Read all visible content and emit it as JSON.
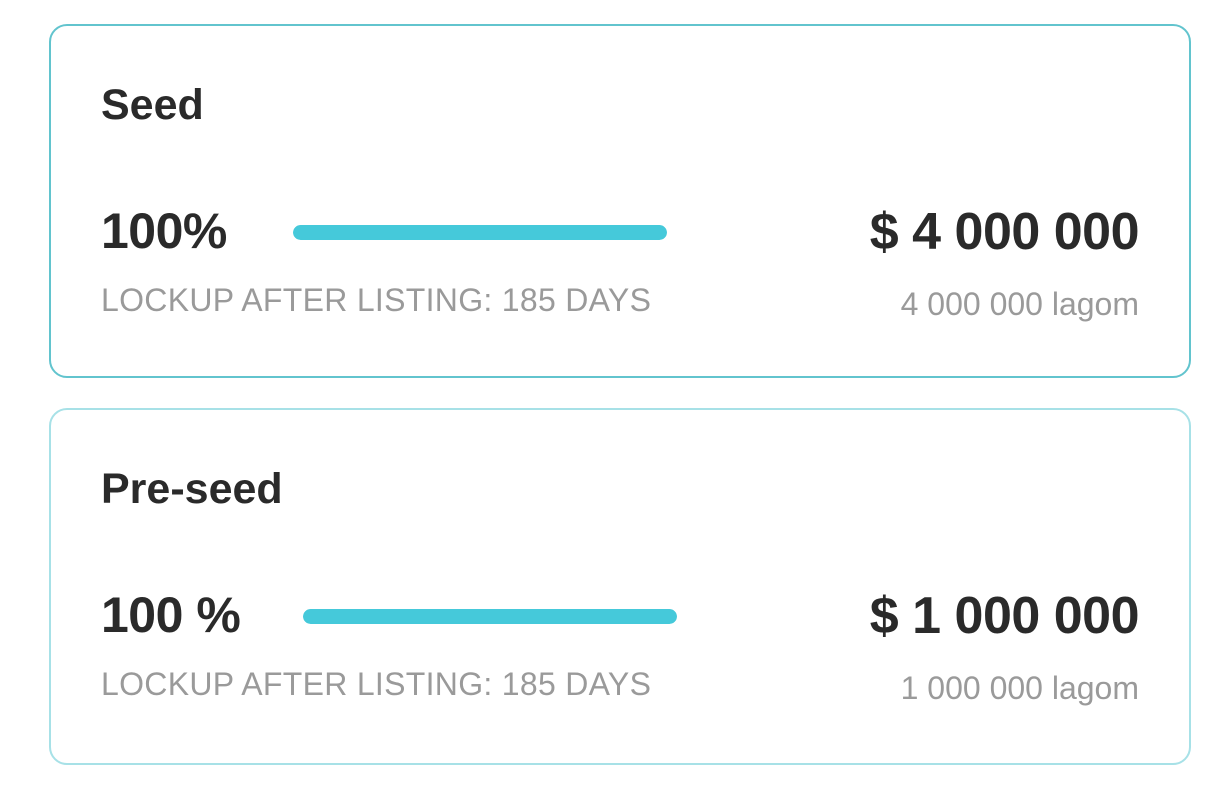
{
  "rounds": [
    {
      "title": "Seed",
      "percent_label": "100%",
      "progress": 1.0,
      "lockup_label": "LOCKUP AFTER LISTING: 185 DAYS",
      "amount_usd": "$ 4 000 000",
      "amount_tokens": "4 000 000 lagom"
    },
    {
      "title": "Pre-seed",
      "percent_label": "100 %",
      "progress": 1.0,
      "lockup_label": "LOCKUP AFTER LISTING: 185 DAYS",
      "amount_usd": "$ 1 000 000",
      "amount_tokens": "1 000 000 lagom"
    }
  ],
  "colors": {
    "accent": "#45c9da",
    "seed_border": "#62c4ce",
    "preseed_border": "#a7e1e7",
    "title_text": "#2a2a2a",
    "muted_text": "#9a9a9a"
  }
}
